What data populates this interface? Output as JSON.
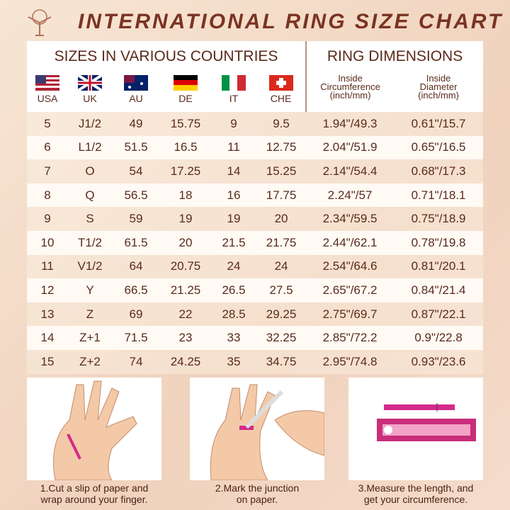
{
  "header": {
    "title": "INTERNATIONAL RING SIZE CHART"
  },
  "table": {
    "group_headers": [
      "SIZES IN VARIOUS COUNTRIES",
      "RING DIMENSIONS"
    ],
    "columns": [
      "USA",
      "UK",
      "AU",
      "DE",
      "IT",
      "CHE",
      [
        "Inside",
        "Circumference",
        "(inch/mm)"
      ],
      [
        "Inside",
        "Diameter",
        "(inch/mm)"
      ]
    ],
    "rows": [
      [
        5,
        "J1/2",
        49,
        15.75,
        9,
        9.5,
        "1.94\"/49.3",
        "0.61\"/15.7"
      ],
      [
        6,
        "L1/2",
        51.5,
        16.5,
        11,
        12.75,
        "2.04\"/51.9",
        "0.65\"/16.5"
      ],
      [
        7,
        "O",
        54,
        17.25,
        14,
        15.25,
        "2.14\"/54.4",
        "0.68\"/17.3"
      ],
      [
        8,
        "Q",
        56.5,
        18,
        16,
        17.75,
        "2.24\"/57",
        "0.71\"/18.1"
      ],
      [
        9,
        "S",
        59,
        19,
        19,
        20,
        "2.34\"/59.5",
        "0.75\"/18.9"
      ],
      [
        10,
        "T1/2",
        61.5,
        20,
        21.5,
        21.75,
        "2.44\"/62.1",
        "0.78\"/19.8"
      ],
      [
        11,
        "V1/2",
        64,
        20.75,
        24,
        24,
        "2.54\"/64.6",
        "0.81\"/20.1"
      ],
      [
        12,
        "Y",
        66.5,
        21.25,
        26.5,
        27.5,
        "2.65\"/67.2",
        "0.84\"/21.4"
      ],
      [
        13,
        "Z",
        69,
        22,
        28.5,
        29.25,
        "2.75\"/69.7",
        "0.87\"/22.1"
      ],
      [
        14,
        "Z+1",
        71.5,
        23,
        33,
        32.25,
        "2.85\"/72.2",
        "0.9\"/22.8"
      ],
      [
        15,
        "Z+2",
        74,
        24.25,
        35,
        34.75,
        "2.95\"/74.8",
        "0.93\"/23.6"
      ]
    ]
  },
  "steps": [
    [
      "1.Cut a slip of paper and",
      "wrap around your finger."
    ],
    [
      "2.Mark the junction",
      "on paper."
    ],
    [
      "3.Measure the length, and",
      "get your circumference."
    ]
  ]
}
